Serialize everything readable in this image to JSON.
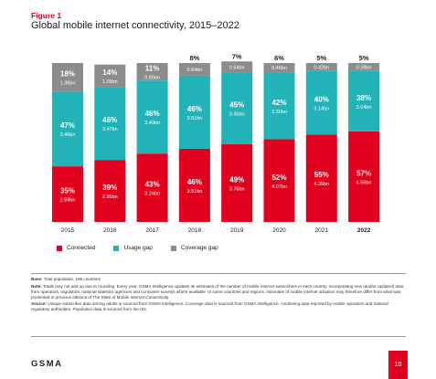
{
  "figure": {
    "label": "Figure 1",
    "title": "Global mobile internet connectivity, 2015–2022"
  },
  "colors": {
    "connected": "#e1001d",
    "usage_gap": "#22b3b8",
    "coverage_gap": "#8c8c8c",
    "accent": "#d9001b"
  },
  "chart_data": {
    "type": "bar",
    "stacked": true,
    "categories": [
      "2015",
      "2016",
      "2017",
      "2018",
      "2019",
      "2020",
      "2021",
      "2022"
    ],
    "ylim": [
      0,
      100
    ],
    "series": [
      {
        "name": "Connected",
        "values": [
          35,
          39,
          43,
          46,
          49,
          52,
          55,
          57
        ],
        "percent_labels": [
          "35%",
          "39%",
          "43%",
          "46%",
          "49%",
          "52%",
          "55%",
          "57%"
        ],
        "absolute_labels": [
          "2.59bn",
          "2.95bn",
          "3.24bn",
          "3.51bn",
          "3.76bn",
          "4.07bn",
          "4.35bn",
          "4.56bn"
        ]
      },
      {
        "name": "Usage gap",
        "values": [
          47,
          46,
          46,
          46,
          45,
          42,
          40,
          38
        ],
        "percent_labels": [
          "47%",
          "46%",
          "46%",
          "46%",
          "45%",
          "42%",
          "40%",
          "38%"
        ],
        "absolute_labels": [
          "3.46bn",
          "3.47bn",
          "3.49bn",
          "3.51bn",
          "3.45bn",
          "3.30bn",
          "3.14bn",
          "3.04bn"
        ]
      },
      {
        "name": "Coverage gap",
        "values": [
          18,
          14,
          11,
          8,
          7,
          6,
          5,
          5
        ],
        "percent_labels": [
          "18%",
          "14%",
          "11%",
          "8%",
          "7%",
          "6%",
          "5%",
          "5%"
        ],
        "absolute_labels": [
          "1.36bn",
          "1.09bn",
          "0.85bn",
          "0.64bn",
          "0.54bn",
          "0.46bn",
          "0.42bn",
          "0.38bn"
        ]
      }
    ],
    "legend": "bottom-left",
    "grid": false,
    "bold_category": "2022"
  },
  "notes": {
    "base_label": "Base:",
    "base_text": "Total population, 198 countries",
    "note_label": "Note:",
    "note_text": "Totals may not add up due to rounding. Every year, GSMA Intelligence updates its estimates of the number of mobile internet subscribers in each country, incorporating new (and/or updated) data from operators, regulators, national statistics agencies and consumer surveys where available. In some countries and regions, estimates of mobile internet adoption may therefore differ from what was presented in previous editions of The State of Mobile Internet Connectivity.",
    "source_label": "Source:",
    "source_text": "Unique subscriber data among adults is sourced from GSMA Intelligence. Coverage data is sourced from GSMA Intelligence, combining data reported by mobile operators and national regulatory authorities. Population data is sourced from the UN."
  },
  "footer": {
    "logo_text": "GSMA",
    "page_number": "10"
  }
}
